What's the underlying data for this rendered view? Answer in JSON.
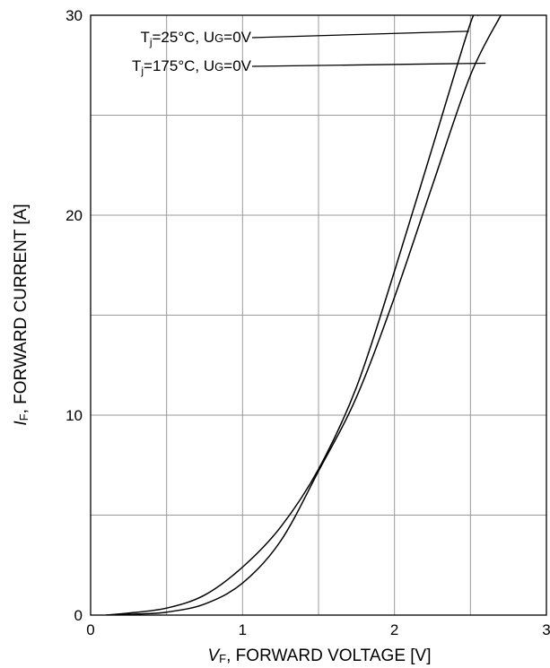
{
  "chart_data": {
    "type": "line",
    "xlabel_var": "V",
    "xlabel_sub": "F",
    "xlabel_rest": ", FORWARD VOLTAGE [V]",
    "ylabel_var": "I",
    "ylabel_sub": "F",
    "ylabel_rest": ", FORWARD CURRENT [A]",
    "xlim": [
      0,
      3
    ],
    "ylim": [
      0,
      30
    ],
    "x_ticks": [
      0,
      1,
      2,
      3
    ],
    "y_ticks": [
      0,
      10,
      20,
      30
    ],
    "x_grid": [
      0.5,
      1,
      1.5,
      2,
      2.5
    ],
    "y_grid": [
      5,
      10,
      15,
      20,
      25
    ],
    "grid": true,
    "series": [
      {
        "name_parts": [
          "T",
          "j",
          "=25°C, U",
          "G",
          "=0V"
        ],
        "label_anchor": [
          2.49,
          29.2
        ],
        "x": [
          0.1,
          0.25,
          0.5,
          0.75,
          1.0,
          1.25,
          1.5,
          1.75,
          2.0,
          2.25,
          2.5,
          2.55
        ],
        "y": [
          0.0,
          0.1,
          0.35,
          1.0,
          2.4,
          4.4,
          7.3,
          11.4,
          17.2,
          23.4,
          29.6,
          30.0
        ]
      },
      {
        "name_parts": [
          "T",
          "j",
          "=175°C, U",
          "G",
          "=0V"
        ],
        "label_anchor": [
          2.6,
          27.6
        ],
        "x": [
          0.15,
          0.3,
          0.5,
          0.75,
          1.0,
          1.25,
          1.5,
          1.75,
          2.0,
          2.25,
          2.5,
          2.7
        ],
        "y": [
          0.0,
          0.05,
          0.15,
          0.55,
          1.6,
          3.7,
          7.2,
          10.9,
          15.9,
          21.5,
          27.0,
          30.0
        ]
      }
    ]
  }
}
